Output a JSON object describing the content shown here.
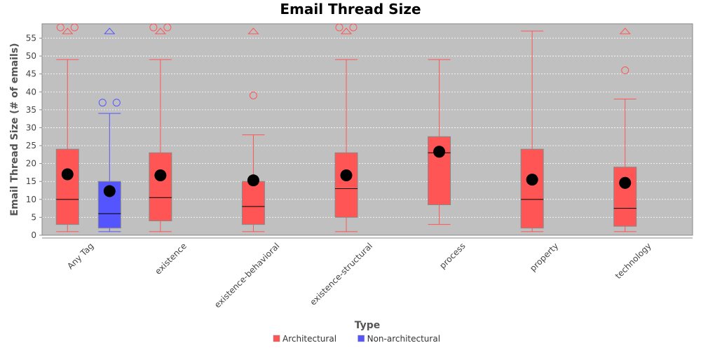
{
  "chart_data": {
    "type": "boxplot",
    "title": "Email Thread Size",
    "xlabel": "Type",
    "ylabel": "Email Thread Size (# of emails)",
    "ylim": [
      0,
      59
    ],
    "yticks": [
      0,
      5,
      10,
      15,
      20,
      25,
      30,
      35,
      40,
      45,
      50,
      55
    ],
    "grid": true,
    "legend_position": "bottom",
    "categories": [
      "Any Tag",
      "existence",
      "existence-behavioral",
      "existence-structural",
      "process",
      "property",
      "technology"
    ],
    "series": [
      {
        "name": "Architectural",
        "color": "#ff5555",
        "boxes": [
          {
            "category": "Any Tag",
            "q1": 3,
            "median": 10,
            "q3": 24,
            "mean": 17,
            "whisker_low": 1,
            "whisker_high": 49,
            "outliers": [
              58,
              58
            ],
            "far_outliers": [
              57
            ]
          },
          {
            "category": "existence",
            "q1": 4,
            "median": 10.5,
            "q3": 23,
            "mean": 16.7,
            "whisker_low": 1,
            "whisker_high": 49,
            "outliers": [
              58,
              58
            ],
            "far_outliers": [
              57
            ]
          },
          {
            "category": "existence-behavioral",
            "q1": 3,
            "median": 8,
            "q3": 15,
            "mean": 15.3,
            "whisker_low": 1,
            "whisker_high": 28,
            "outliers": [
              39
            ],
            "far_outliers": [
              57
            ]
          },
          {
            "category": "existence-structural",
            "q1": 5,
            "median": 13,
            "q3": 23,
            "mean": 16.7,
            "whisker_low": 1,
            "whisker_high": 49,
            "outliers": [
              58,
              58
            ],
            "far_outliers": [
              57
            ]
          },
          {
            "category": "process",
            "q1": 8.5,
            "median": 23,
            "q3": 27.5,
            "mean": 23.3,
            "whisker_low": 3,
            "whisker_high": 49,
            "outliers": [],
            "far_outliers": []
          },
          {
            "category": "property",
            "q1": 2,
            "median": 10,
            "q3": 24,
            "mean": 15.5,
            "whisker_low": 1,
            "whisker_high": 57,
            "outliers": [],
            "far_outliers": []
          },
          {
            "category": "technology",
            "q1": 2.5,
            "median": 7.5,
            "q3": 19,
            "mean": 14.6,
            "whisker_low": 1,
            "whisker_high": 38,
            "outliers": [
              46
            ],
            "far_outliers": [
              57
            ]
          }
        ]
      },
      {
        "name": "Non-architectural",
        "color": "#5555ff",
        "boxes": [
          {
            "category": "Any Tag",
            "q1": 2,
            "median": 6,
            "q3": 15,
            "mean": 12.3,
            "whisker_low": 1,
            "whisker_high": 34,
            "outliers": [
              37,
              37
            ],
            "far_outliers": [
              57
            ]
          }
        ]
      }
    ]
  },
  "colors": {
    "plot_background": "#c0c0c0",
    "grid": "#ffffff",
    "mean_marker": "#000000",
    "median_line": "#000000",
    "box_border": "#888888"
  }
}
